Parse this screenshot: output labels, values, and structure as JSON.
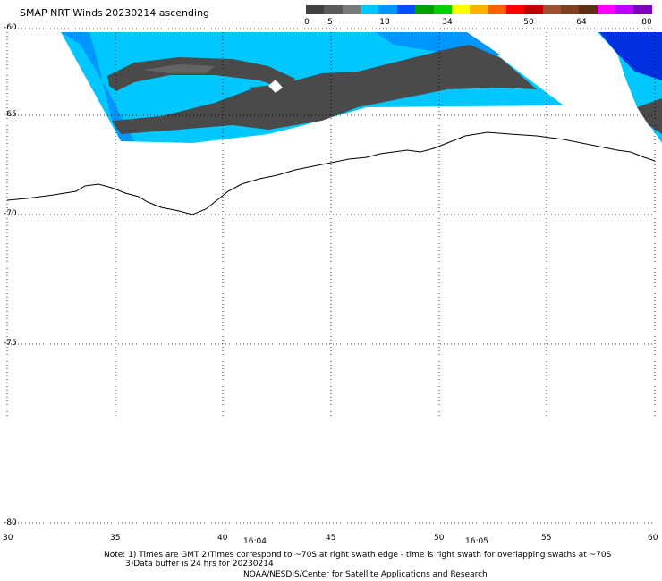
{
  "title": "SMAP NRT Winds 20230214 ascending",
  "colorbar": {
    "labels": [
      "0",
      "5",
      "18",
      "34",
      "50",
      "64",
      "80"
    ],
    "colors": [
      "#404040",
      "#5a5a5a",
      "#7a7a7a",
      "#00c8ff",
      "#0096ff",
      "#0050ff",
      "#00a000",
      "#00d000",
      "#ffff00",
      "#ffb000",
      "#ff6000",
      "#ff0000",
      "#c00000",
      "#a05030",
      "#804020",
      "#603010",
      "#ff00ff",
      "#c000ff",
      "#8000c0"
    ]
  },
  "lat_labels": [
    "-60",
    "-65",
    "-70",
    "-75",
    "-80"
  ],
  "lon_labels": [
    "30",
    "35",
    "40",
    "45",
    "50",
    "55",
    "60"
  ],
  "time_labels": [
    "16:04",
    "16:05"
  ],
  "notes": [
    "Note: 1) Times are GMT 2)Times correspond to ~70S at right swath edge - time is right swath for overlapping swaths at ~70S",
    "3)Data buffer is 24 hrs for 20230214",
    "NOAA/NESDIS/Center for Satellite Applications and Research"
  ],
  "colors": {
    "ocean_low": "#00c8ff",
    "ocean_mid": "#0096ff",
    "ocean_high": "#0040ff",
    "ice_gray": "#505050",
    "coast": "#000000"
  }
}
